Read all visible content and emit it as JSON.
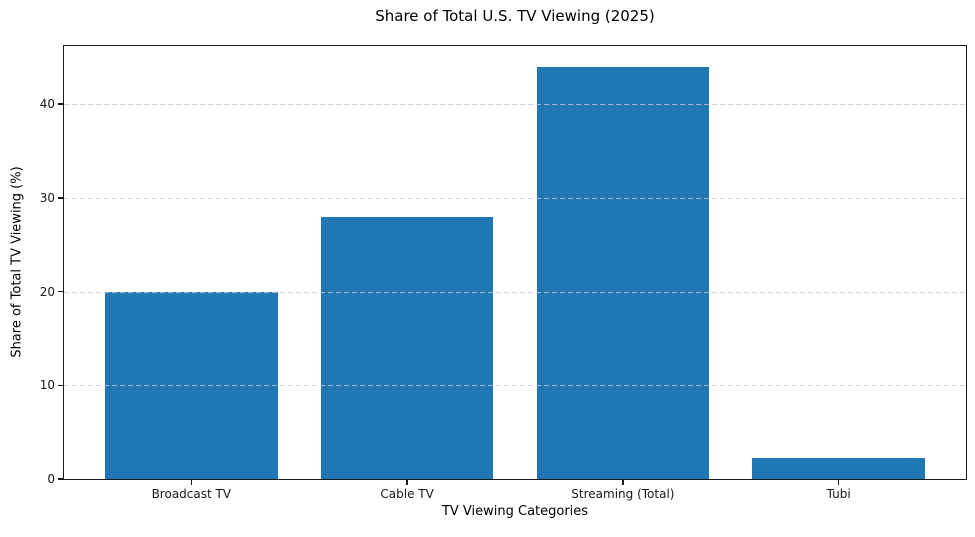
{
  "chart_data": {
    "type": "bar",
    "title": "Share of Total U.S. TV Viewing (2025)",
    "xlabel": "TV Viewing Categories",
    "ylabel": "Share of Total TV Viewing (%)",
    "categories": [
      "Broadcast TV",
      "Cable TV",
      "Streaming (Total)",
      "Tubi"
    ],
    "values": [
      20,
      28,
      44,
      2.2
    ],
    "yticks": [
      0,
      10,
      20,
      30,
      40
    ],
    "ylim": [
      0,
      46.2
    ],
    "bar_color": "#1f77b4",
    "bar_width_frac": 0.8,
    "x_margin_frac": 0.05,
    "grid": "horizontal-dashed-above-bars",
    "legend": "none",
    "background_color": "#ffffff"
  }
}
